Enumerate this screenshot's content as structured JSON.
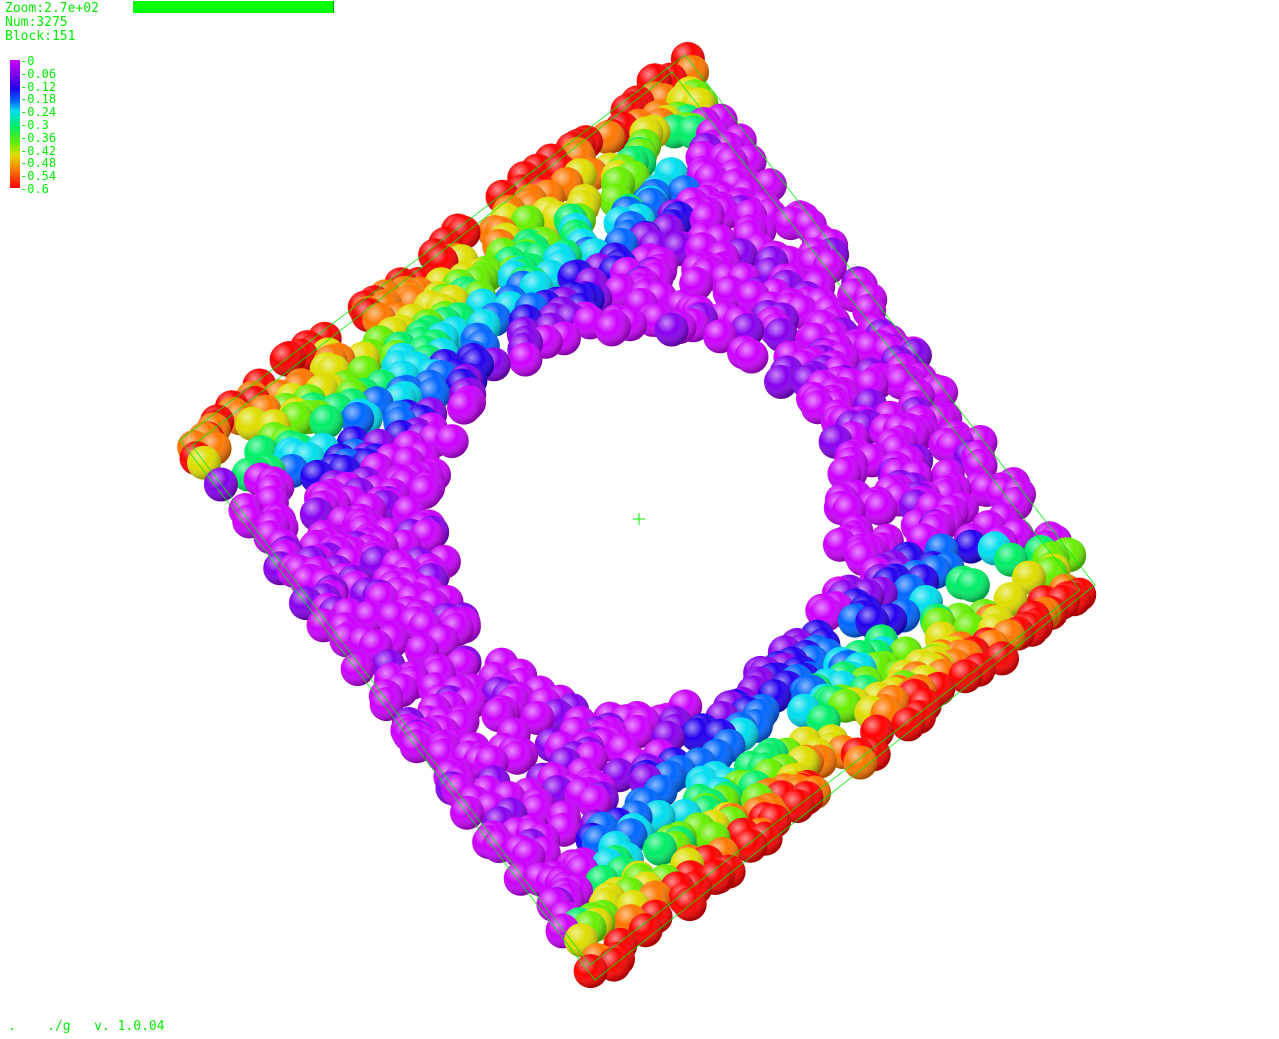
{
  "hud": {
    "zoom": "Zoom:2.7e+02",
    "num": "Num:3275",
    "block": "Block:151",
    "progress": 1.0
  },
  "colorbar": {
    "ticks": [
      "0",
      "0.06",
      "0.12",
      "0.18",
      "0.24",
      "0.3",
      "0.36",
      "0.42",
      "0.48",
      "0.54",
      "0.6"
    ],
    "range": [
      0,
      0.6
    ],
    "colors": [
      "#cc00ff",
      "#8800ee",
      "#2200ee",
      "#0066ff",
      "#00ddee",
      "#00ee66",
      "#66ee00",
      "#dddd00",
      "#ff7700",
      "#ff0000"
    ]
  },
  "footer": {
    "dot": ".",
    "path": "./g",
    "version": "v. 1.0.04"
  },
  "scene": {
    "accent_color": "#00ee00",
    "center_marker": "crosshair-icon"
  }
}
